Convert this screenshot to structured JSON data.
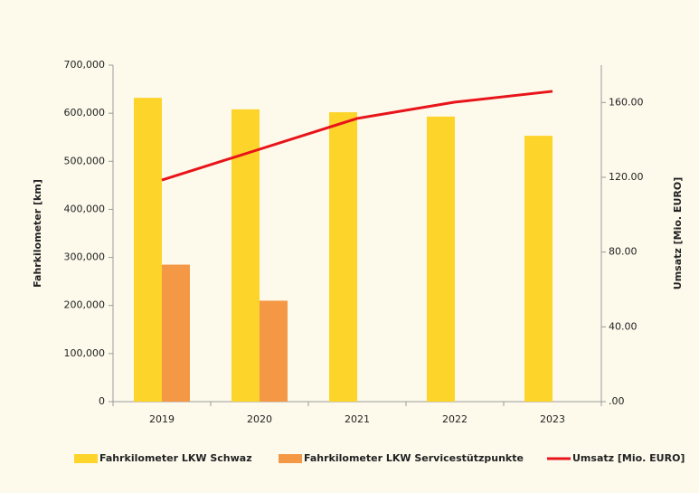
{
  "chart_data": {
    "type": "bar",
    "categories": [
      "2019",
      "2020",
      "2021",
      "2022",
      "2023"
    ],
    "y_label": "Fahrkilometer [km]",
    "y2_label": "Umsatz [Mio. EURO]",
    "series": [
      {
        "name": "Fahrkilometer LKW Schwaz",
        "color": "#fdd42a",
        "type": "bar",
        "values": [
          632000,
          608000,
          602000,
          593000,
          553000
        ]
      },
      {
        "name": "Fahrkilometer LKW Servicestützpunkte",
        "color": "#f59845",
        "type": "bar",
        "values": [
          285000,
          210000,
          null,
          null,
          null
        ]
      },
      {
        "name": "Umsatz [Mio. EURO]",
        "color": "#e8141a",
        "type": "line",
        "axis": "y2",
        "values": [
          118.5,
          135,
          151.5,
          160.2,
          166
        ]
      }
    ],
    "ylim": [
      0,
      700000
    ],
    "yticks": [
      0,
      {
        "value": 100000,
        "label": "100,000"
      },
      {
        "value": 200000,
        "label": "200,000"
      },
      {
        "value": 300000,
        "label": "300,000"
      },
      {
        "value": 400000,
        "label": "400,000"
      },
      {
        "value": 500000,
        "label": "500,000"
      },
      {
        "value": 600000,
        "label": "600,000"
      },
      {
        "value": 700000,
        "label": "700,000"
      }
    ],
    "y2lim": [
      0,
      180
    ],
    "y2ticks": [
      {
        "value": 0,
        "label": ".00"
      },
      {
        "value": 40,
        "label": "40.00"
      },
      {
        "value": 80,
        "label": "80.00"
      },
      {
        "value": 120,
        "label": "120.00"
      },
      {
        "value": 160,
        "label": "160.00"
      }
    ],
    "legend": "bottom"
  }
}
